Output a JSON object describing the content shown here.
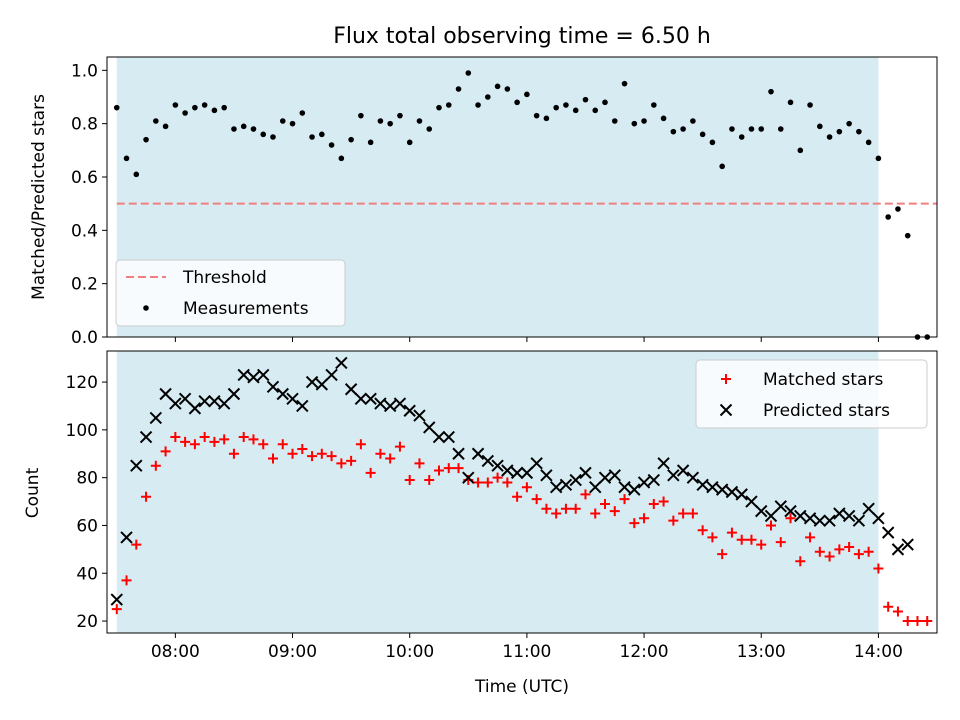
{
  "title": "Flux total observing time = 6.50 h",
  "chart_data": [
    {
      "type": "scatter",
      "ylabel": "Matched/Predicted stars",
      "xlabel": "",
      "xlim": [
        "07:25",
        "14:30"
      ],
      "ylim": [
        0,
        1.05
      ],
      "yticks": [
        0.0,
        0.2,
        0.4,
        0.6,
        0.8,
        1.0
      ],
      "ytick_labels": [
        "0.0",
        "0.2",
        "0.4",
        "0.6",
        "0.8",
        "1.0"
      ],
      "shaded_interval": [
        "07:30",
        "14:00"
      ],
      "grid": false,
      "legend_position": "lower-left",
      "threshold": {
        "name": "Threshold",
        "y": 0.5,
        "x": [
          "07:30",
          "14:30"
        ],
        "color": "#f08080"
      },
      "series": [
        {
          "name": "Measurements",
          "marker": "dot",
          "color": "#000000",
          "points": [
            [
              "07:30",
              0.86
            ],
            [
              "07:35",
              0.67
            ],
            [
              "07:40",
              0.61
            ],
            [
              "07:45",
              0.74
            ],
            [
              "07:50",
              0.81
            ],
            [
              "07:55",
              0.79
            ],
            [
              "08:00",
              0.87
            ],
            [
              "08:05",
              0.84
            ],
            [
              "08:10",
              0.86
            ],
            [
              "08:15",
              0.87
            ],
            [
              "08:20",
              0.85
            ],
            [
              "08:25",
              0.86
            ],
            [
              "08:30",
              0.78
            ],
            [
              "08:35",
              0.79
            ],
            [
              "08:40",
              0.78
            ],
            [
              "08:45",
              0.76
            ],
            [
              "08:50",
              0.75
            ],
            [
              "08:55",
              0.81
            ],
            [
              "09:00",
              0.8
            ],
            [
              "09:05",
              0.84
            ],
            [
              "09:10",
              0.75
            ],
            [
              "09:15",
              0.76
            ],
            [
              "09:20",
              0.72
            ],
            [
              "09:25",
              0.67
            ],
            [
              "09:30",
              0.74
            ],
            [
              "09:35",
              0.83
            ],
            [
              "09:40",
              0.73
            ],
            [
              "09:45",
              0.81
            ],
            [
              "09:50",
              0.8
            ],
            [
              "09:55",
              0.83
            ],
            [
              "10:00",
              0.73
            ],
            [
              "10:05",
              0.81
            ],
            [
              "10:10",
              0.78
            ],
            [
              "10:15",
              0.86
            ],
            [
              "10:20",
              0.87
            ],
            [
              "10:25",
              0.93
            ],
            [
              "10:30",
              0.99
            ],
            [
              "10:35",
              0.87
            ],
            [
              "10:40",
              0.9
            ],
            [
              "10:45",
              0.94
            ],
            [
              "10:50",
              0.93
            ],
            [
              "10:55",
              0.88
            ],
            [
              "11:00",
              0.91
            ],
            [
              "11:05",
              0.83
            ],
            [
              "11:10",
              0.82
            ],
            [
              "11:15",
              0.86
            ],
            [
              "11:20",
              0.87
            ],
            [
              "11:25",
              0.85
            ],
            [
              "11:30",
              0.89
            ],
            [
              "11:35",
              0.85
            ],
            [
              "11:40",
              0.88
            ],
            [
              "11:45",
              0.81
            ],
            [
              "11:50",
              0.95
            ],
            [
              "11:55",
              0.8
            ],
            [
              "12:00",
              0.81
            ],
            [
              "12:05",
              0.87
            ],
            [
              "12:10",
              0.82
            ],
            [
              "12:15",
              0.77
            ],
            [
              "12:20",
              0.78
            ],
            [
              "12:25",
              0.81
            ],
            [
              "12:30",
              0.76
            ],
            [
              "12:35",
              0.73
            ],
            [
              "12:40",
              0.64
            ],
            [
              "12:45",
              0.78
            ],
            [
              "12:50",
              0.75
            ],
            [
              "12:55",
              0.78
            ],
            [
              "13:00",
              0.78
            ],
            [
              "13:05",
              0.92
            ],
            [
              "13:10",
              0.78
            ],
            [
              "13:15",
              0.88
            ],
            [
              "13:20",
              0.7
            ],
            [
              "13:25",
              0.87
            ],
            [
              "13:30",
              0.79
            ],
            [
              "13:35",
              0.75
            ],
            [
              "13:40",
              0.77
            ],
            [
              "13:45",
              0.8
            ],
            [
              "13:50",
              0.77
            ],
            [
              "13:55",
              0.73
            ],
            [
              "14:00",
              0.67
            ],
            [
              "14:05",
              0.45
            ],
            [
              "14:10",
              0.48
            ],
            [
              "14:15",
              0.38
            ],
            [
              "14:20",
              0.0
            ],
            [
              "14:25",
              0.0
            ]
          ]
        }
      ]
    },
    {
      "type": "scatter",
      "ylabel": "Count",
      "xlabel": "Time (UTC)",
      "xlim": [
        "07:25",
        "14:30"
      ],
      "ylim": [
        15,
        133
      ],
      "yticks": [
        20,
        40,
        60,
        80,
        100,
        120
      ],
      "ytick_labels": [
        "20",
        "40",
        "60",
        "80",
        "100",
        "120"
      ],
      "xticks": [
        "08:00",
        "09:00",
        "10:00",
        "11:00",
        "12:00",
        "13:00",
        "14:00"
      ],
      "xtick_labels": [
        "08:00",
        "09:00",
        "10:00",
        "11:00",
        "12:00",
        "13:00",
        "14:00"
      ],
      "shaded_interval": [
        "07:30",
        "14:00"
      ],
      "grid": false,
      "legend_position": "upper-right",
      "series": [
        {
          "name": "Matched stars",
          "marker": "plus",
          "color": "#ff0000",
          "points": [
            [
              "07:30",
              25
            ],
            [
              "07:35",
              37
            ],
            [
              "07:40",
              52
            ],
            [
              "07:45",
              72
            ],
            [
              "07:50",
              85
            ],
            [
              "07:55",
              91
            ],
            [
              "08:00",
              97
            ],
            [
              "08:05",
              95
            ],
            [
              "08:10",
              94
            ],
            [
              "08:15",
              97
            ],
            [
              "08:20",
              95
            ],
            [
              "08:25",
              96
            ],
            [
              "08:30",
              90
            ],
            [
              "08:35",
              97
            ],
            [
              "08:40",
              96
            ],
            [
              "08:45",
              94
            ],
            [
              "08:50",
              88
            ],
            [
              "08:55",
              94
            ],
            [
              "09:00",
              90
            ],
            [
              "09:05",
              92
            ],
            [
              "09:10",
              89
            ],
            [
              "09:15",
              90
            ],
            [
              "09:20",
              89
            ],
            [
              "09:25",
              86
            ],
            [
              "09:30",
              87
            ],
            [
              "09:35",
              94
            ],
            [
              "09:40",
              82
            ],
            [
              "09:45",
              90
            ],
            [
              "09:50",
              88
            ],
            [
              "09:55",
              93
            ],
            [
              "10:00",
              79
            ],
            [
              "10:05",
              86
            ],
            [
              "10:10",
              79
            ],
            [
              "10:15",
              83
            ],
            [
              "10:20",
              84
            ],
            [
              "10:25",
              84
            ],
            [
              "10:30",
              79
            ],
            [
              "10:35",
              78
            ],
            [
              "10:40",
              78
            ],
            [
              "10:45",
              80
            ],
            [
              "10:50",
              78
            ],
            [
              "10:55",
              72
            ],
            [
              "11:00",
              76
            ],
            [
              "11:05",
              71
            ],
            [
              "11:10",
              67
            ],
            [
              "11:15",
              65
            ],
            [
              "11:20",
              67
            ],
            [
              "11:25",
              67
            ],
            [
              "11:30",
              73
            ],
            [
              "11:35",
              65
            ],
            [
              "11:40",
              69
            ],
            [
              "11:45",
              66
            ],
            [
              "11:50",
              71
            ],
            [
              "11:55",
              61
            ],
            [
              "12:00",
              63
            ],
            [
              "12:05",
              69
            ],
            [
              "12:10",
              70
            ],
            [
              "12:15",
              62
            ],
            [
              "12:20",
              65
            ],
            [
              "12:25",
              65
            ],
            [
              "12:30",
              58
            ],
            [
              "12:35",
              55
            ],
            [
              "12:40",
              48
            ],
            [
              "12:45",
              57
            ],
            [
              "12:50",
              54
            ],
            [
              "12:55",
              54
            ],
            [
              "13:00",
              52
            ],
            [
              "13:05",
              60
            ],
            [
              "13:10",
              53
            ],
            [
              "13:15",
              63
            ],
            [
              "13:20",
              45
            ],
            [
              "13:25",
              55
            ],
            [
              "13:30",
              49
            ],
            [
              "13:35",
              47
            ],
            [
              "13:40",
              50
            ],
            [
              "13:45",
              51
            ],
            [
              "13:50",
              48
            ],
            [
              "13:55",
              49
            ],
            [
              "14:00",
              42
            ],
            [
              "14:05",
              26
            ],
            [
              "14:10",
              24
            ],
            [
              "14:15",
              20
            ],
            [
              "14:20",
              20
            ],
            [
              "14:25",
              20
            ]
          ]
        },
        {
          "name": "Predicted stars",
          "marker": "x",
          "color": "#000000",
          "points": [
            [
              "07:30",
              29
            ],
            [
              "07:35",
              55
            ],
            [
              "07:40",
              85
            ],
            [
              "07:45",
              97
            ],
            [
              "07:50",
              105
            ],
            [
              "07:55",
              115
            ],
            [
              "08:00",
              111
            ],
            [
              "08:05",
              113
            ],
            [
              "08:10",
              109
            ],
            [
              "08:15",
              112
            ],
            [
              "08:20",
              112
            ],
            [
              "08:25",
              111
            ],
            [
              "08:30",
              115
            ],
            [
              "08:35",
              123
            ],
            [
              "08:40",
              122
            ],
            [
              "08:45",
              123
            ],
            [
              "08:50",
              118
            ],
            [
              "08:55",
              115
            ],
            [
              "09:00",
              113
            ],
            [
              "09:05",
              110
            ],
            [
              "09:10",
              120
            ],
            [
              "09:15",
              119
            ],
            [
              "09:20",
              123
            ],
            [
              "09:25",
              128
            ],
            [
              "09:30",
              117
            ],
            [
              "09:35",
              113
            ],
            [
              "09:40",
              113
            ],
            [
              "09:45",
              111
            ],
            [
              "09:50",
              110
            ],
            [
              "09:55",
              111
            ],
            [
              "10:00",
              108
            ],
            [
              "10:05",
              106
            ],
            [
              "10:10",
              101
            ],
            [
              "10:15",
              97
            ],
            [
              "10:20",
              97
            ],
            [
              "10:25",
              90
            ],
            [
              "10:30",
              80
            ],
            [
              "10:35",
              90
            ],
            [
              "10:40",
              87
            ],
            [
              "10:45",
              85
            ],
            [
              "10:50",
              83
            ],
            [
              "10:55",
              82
            ],
            [
              "11:00",
              82
            ],
            [
              "11:05",
              86
            ],
            [
              "11:10",
              81
            ],
            [
              "11:15",
              76
            ],
            [
              "11:20",
              77
            ],
            [
              "11:25",
              79
            ],
            [
              "11:30",
              82
            ],
            [
              "11:35",
              76
            ],
            [
              "11:40",
              80
            ],
            [
              "11:45",
              81
            ],
            [
              "11:50",
              76
            ],
            [
              "11:55",
              75
            ],
            [
              "12:00",
              78
            ],
            [
              "12:05",
              79
            ],
            [
              "12:10",
              86
            ],
            [
              "12:15",
              81
            ],
            [
              "12:20",
              83
            ],
            [
              "12:25",
              80
            ],
            [
              "12:30",
              77
            ],
            [
              "12:35",
              76
            ],
            [
              "12:40",
              75
            ],
            [
              "12:45",
              74
            ],
            [
              "12:50",
              73
            ],
            [
              "12:55",
              70
            ],
            [
              "13:00",
              66
            ],
            [
              "13:05",
              64
            ],
            [
              "13:10",
              68
            ],
            [
              "13:15",
              66
            ],
            [
              "13:20",
              64
            ],
            [
              "13:25",
              63
            ],
            [
              "13:30",
              62
            ],
            [
              "13:35",
              62
            ],
            [
              "13:40",
              65
            ],
            [
              "13:45",
              64
            ],
            [
              "13:50",
              62
            ],
            [
              "13:55",
              67
            ],
            [
              "14:00",
              63
            ],
            [
              "14:05",
              57
            ],
            [
              "14:10",
              50
            ],
            [
              "14:15",
              52
            ]
          ]
        }
      ]
    }
  ]
}
